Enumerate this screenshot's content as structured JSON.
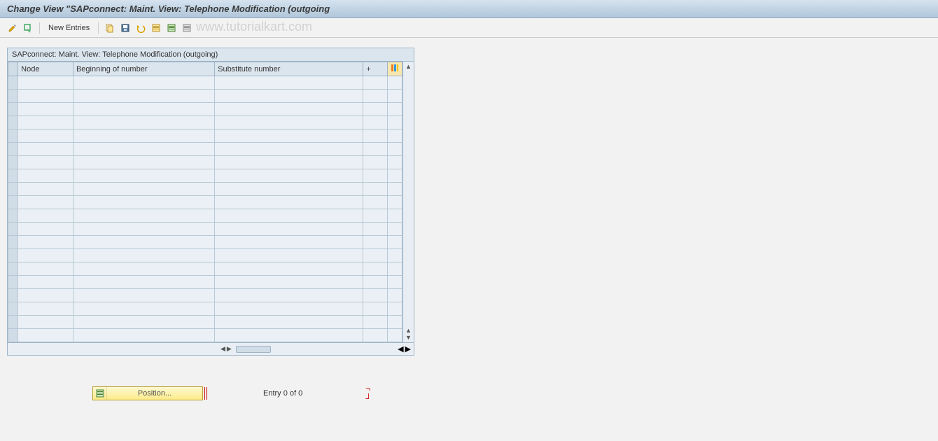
{
  "titlebar": {
    "title": "Change View \"SAPconnect: Maint. View: Telephone Modification (outgoing"
  },
  "toolbar": {
    "new_entries_label": "New Entries"
  },
  "watermark": "www.tutorialkart.com",
  "panel": {
    "title": "SAPconnect: Maint. View: Telephone Modification (outgoing)",
    "columns": {
      "node": "Node",
      "beginning": "Beginning of number",
      "substitute": "Substitute number",
      "plus": "+"
    },
    "row_count": 20
  },
  "footer": {
    "position_label": "Position...",
    "entry_text": "Entry 0 of 0"
  },
  "colors": {
    "header_gradient_top": "#d6e3ef",
    "header_gradient_bottom": "#b0c6da",
    "panel_bg": "#dbe5ee",
    "cell_bg": "#eaf0f5",
    "border": "#9fb4c7",
    "position_btn_bg": "#fceb8a"
  }
}
